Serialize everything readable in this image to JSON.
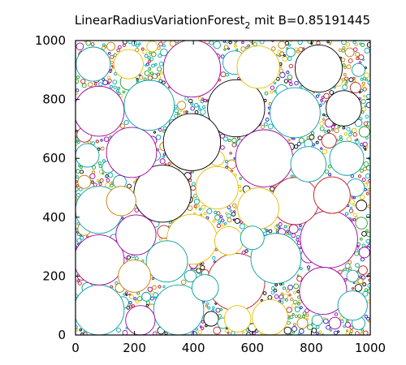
{
  "chart_data": {
    "type": "scatter",
    "title_main": "LinearRadiusVariationForest",
    "title_sub": "2",
    "title_rest": " mit B=0.85191445",
    "xlim": [
      0,
      1000
    ],
    "ylim": [
      0,
      1000
    ],
    "x_ticks": [
      0,
      200,
      400,
      600,
      800,
      1000
    ],
    "y_ticks": [
      0,
      200,
      400,
      600,
      800,
      1000
    ],
    "grid": false,
    "palette": [
      "#00a0a0",
      "#a000a0",
      "#e0c000",
      "#c02020",
      "#000000",
      "#c08000",
      "#00b0b0",
      "#20a020",
      "#2020c0"
    ],
    "large_circles": [
      {
        "x": 395,
        "y": 905,
        "r": 97,
        "color": "#a000a0"
      },
      {
        "x": 545,
        "y": 770,
        "r": 97,
        "color": "#000000"
      },
      {
        "x": 395,
        "y": 655,
        "r": 97,
        "color": "#000000"
      },
      {
        "x": 295,
        "y": 480,
        "r": 97,
        "color": "#000000"
      },
      {
        "x": 640,
        "y": 600,
        "r": 97,
        "color": "#a000a0"
      },
      {
        "x": 860,
        "y": 325,
        "r": 97,
        "color": "#a000a0"
      },
      {
        "x": 545,
        "y": 180,
        "r": 97,
        "color": "#c02020"
      },
      {
        "x": 350,
        "y": 85,
        "r": 85,
        "color": "#00a0a0"
      },
      {
        "x": 80,
        "y": 85,
        "r": 85,
        "color": "#00a0a0"
      },
      {
        "x": 80,
        "y": 255,
        "r": 85,
        "color": "#a000a0"
      },
      {
        "x": 80,
        "y": 425,
        "r": 80,
        "color": "#00a0a0"
      },
      {
        "x": 80,
        "y": 760,
        "r": 85,
        "color": "#a000a0"
      },
      {
        "x": 840,
        "y": 150,
        "r": 80,
        "color": "#a000a0"
      },
      {
        "x": 680,
        "y": 260,
        "r": 85,
        "color": "#00a0a0"
      },
      {
        "x": 190,
        "y": 620,
        "r": 85,
        "color": "#a000a0"
      },
      {
        "x": 250,
        "y": 780,
        "r": 85,
        "color": "#00a0a0"
      },
      {
        "x": 745,
        "y": 755,
        "r": 85,
        "color": "#00a0a0"
      },
      {
        "x": 825,
        "y": 905,
        "r": 80,
        "color": "#000000"
      },
      {
        "x": 395,
        "y": 325,
        "r": 85,
        "color": "#e0c000"
      },
      {
        "x": 620,
        "y": 910,
        "r": 72,
        "color": "#e0c000"
      },
      {
        "x": 480,
        "y": 500,
        "r": 72,
        "color": "#e0c000"
      },
      {
        "x": 745,
        "y": 455,
        "r": 80,
        "color": "#c02020"
      },
      {
        "x": 155,
        "y": 455,
        "r": 50,
        "color": "#c08000"
      },
      {
        "x": 620,
        "y": 430,
        "r": 70,
        "color": "#e0c000"
      },
      {
        "x": 205,
        "y": 340,
        "r": 68,
        "color": "#a000a0"
      },
      {
        "x": 310,
        "y": 250,
        "r": 70,
        "color": "#00a0a0"
      },
      {
        "x": 440,
        "y": 160,
        "r": 45,
        "color": "#00a0a0"
      },
      {
        "x": 200,
        "y": 200,
        "r": 55,
        "color": "#c08000"
      },
      {
        "x": 220,
        "y": 50,
        "r": 50,
        "color": "#a000a0"
      },
      {
        "x": 870,
        "y": 475,
        "r": 62,
        "color": "#c02020"
      },
      {
        "x": 790,
        "y": 580,
        "r": 60,
        "color": "#00a0a0"
      },
      {
        "x": 920,
        "y": 600,
        "r": 58,
        "color": "#00a0a0"
      },
      {
        "x": 910,
        "y": 770,
        "r": 60,
        "color": "#000000"
      },
      {
        "x": 60,
        "y": 920,
        "r": 58,
        "color": "#00a0a0"
      },
      {
        "x": 180,
        "y": 920,
        "r": 50,
        "color": "#e0c000"
      },
      {
        "x": 660,
        "y": 60,
        "r": 60,
        "color": "#e0c000"
      },
      {
        "x": 940,
        "y": 100,
        "r": 50,
        "color": "#00a0a0"
      },
      {
        "x": 550,
        "y": 55,
        "r": 45,
        "color": "#e0c000"
      },
      {
        "x": 520,
        "y": 320,
        "r": 48,
        "color": "#e0c000"
      },
      {
        "x": 600,
        "y": 330,
        "r": 40,
        "color": "#00a0a0"
      }
    ],
    "small_circles": [
      {
        "x": 540,
        "y": 925,
        "r": 40,
        "color": "#00a0a0"
      },
      {
        "x": 470,
        "y": 710,
        "r": 30,
        "color": "#00a0a0"
      },
      {
        "x": 180,
        "y": 860,
        "r": 28,
        "color": "#20a020"
      },
      {
        "x": 560,
        "y": 650,
        "r": 14,
        "color": "#00a0a0"
      },
      {
        "x": 620,
        "y": 720,
        "r": 10,
        "color": "#a000a0"
      },
      {
        "x": 960,
        "y": 900,
        "r": 22,
        "color": "#00a0a0"
      },
      {
        "x": 950,
        "y": 840,
        "r": 18,
        "color": "#c02020"
      },
      {
        "x": 890,
        "y": 860,
        "r": 15,
        "color": "#e0c000"
      },
      {
        "x": 930,
        "y": 960,
        "r": 15,
        "color": "#c08000"
      },
      {
        "x": 980,
        "y": 690,
        "r": 18,
        "color": "#20a020"
      },
      {
        "x": 40,
        "y": 610,
        "r": 40,
        "color": "#00a0a0"
      },
      {
        "x": 30,
        "y": 520,
        "r": 22,
        "color": "#c08000"
      },
      {
        "x": 30,
        "y": 680,
        "r": 25,
        "color": "#c02020"
      },
      {
        "x": 110,
        "y": 570,
        "r": 20,
        "color": "#00a0a0"
      },
      {
        "x": 150,
        "y": 520,
        "r": 22,
        "color": "#00a0a0"
      },
      {
        "x": 260,
        "y": 660,
        "r": 15,
        "color": "#a000a0"
      },
      {
        "x": 270,
        "y": 610,
        "r": 18,
        "color": "#00a0a0"
      },
      {
        "x": 345,
        "y": 580,
        "r": 18,
        "color": "#e0c000"
      },
      {
        "x": 480,
        "y": 600,
        "r": 25,
        "color": "#e0c000"
      },
      {
        "x": 530,
        "y": 580,
        "r": 15,
        "color": "#c08000"
      },
      {
        "x": 380,
        "y": 540,
        "r": 12,
        "color": "#000000"
      },
      {
        "x": 385,
        "y": 460,
        "r": 12,
        "color": "#000000"
      },
      {
        "x": 580,
        "y": 495,
        "r": 12,
        "color": "#000000"
      },
      {
        "x": 640,
        "y": 480,
        "r": 14,
        "color": "#000000"
      },
      {
        "x": 730,
        "y": 640,
        "r": 12,
        "color": "#000000"
      },
      {
        "x": 790,
        "y": 650,
        "r": 14,
        "color": "#00a0a0"
      },
      {
        "x": 860,
        "y": 660,
        "r": 25,
        "color": "#c02020"
      },
      {
        "x": 950,
        "y": 500,
        "r": 30,
        "color": "#00a0a0"
      },
      {
        "x": 970,
        "y": 440,
        "r": 18,
        "color": "#000000"
      },
      {
        "x": 970,
        "y": 380,
        "r": 20,
        "color": "#20a020"
      },
      {
        "x": 980,
        "y": 280,
        "r": 18,
        "color": "#a000a0"
      },
      {
        "x": 975,
        "y": 220,
        "r": 15,
        "color": "#c02020"
      },
      {
        "x": 960,
        "y": 160,
        "r": 12,
        "color": "#000000"
      },
      {
        "x": 940,
        "y": 200,
        "r": 20,
        "color": "#00a0a0"
      },
      {
        "x": 960,
        "y": 40,
        "r": 22,
        "color": "#00a0a0"
      },
      {
        "x": 880,
        "y": 40,
        "r": 20,
        "color": "#a000a0"
      },
      {
        "x": 820,
        "y": 50,
        "r": 18,
        "color": "#00a0a0"
      },
      {
        "x": 770,
        "y": 40,
        "r": 18,
        "color": "#c08000"
      },
      {
        "x": 720,
        "y": 15,
        "r": 12,
        "color": "#000000"
      },
      {
        "x": 790,
        "y": 270,
        "r": 25,
        "color": "#a000a0"
      },
      {
        "x": 740,
        "y": 360,
        "r": 15,
        "color": "#a000a0"
      },
      {
        "x": 700,
        "y": 350,
        "r": 12,
        "color": "#a000a0"
      },
      {
        "x": 460,
        "y": 55,
        "r": 25,
        "color": "#000000"
      },
      {
        "x": 500,
        "y": 40,
        "r": 18,
        "color": "#00a0a0"
      },
      {
        "x": 480,
        "y": 15,
        "r": 12,
        "color": "#c02020"
      },
      {
        "x": 600,
        "y": 25,
        "r": 14,
        "color": "#000000"
      },
      {
        "x": 570,
        "y": 80,
        "r": 12,
        "color": "#a000a0"
      },
      {
        "x": 290,
        "y": 15,
        "r": 12,
        "color": "#000000"
      },
      {
        "x": 260,
        "y": 90,
        "r": 15,
        "color": "#c08000"
      },
      {
        "x": 240,
        "y": 130,
        "r": 15,
        "color": "#00a0a0"
      },
      {
        "x": 160,
        "y": 110,
        "r": 20,
        "color": "#00a0a0"
      },
      {
        "x": 150,
        "y": 160,
        "r": 15,
        "color": "#c08000"
      },
      {
        "x": 160,
        "y": 250,
        "r": 15,
        "color": "#a000a0"
      },
      {
        "x": 130,
        "y": 230,
        "r": 12,
        "color": "#e0c000"
      },
      {
        "x": 300,
        "y": 350,
        "r": 22,
        "color": "#c02020"
      },
      {
        "x": 270,
        "y": 380,
        "r": 14,
        "color": "#00a0a0"
      },
      {
        "x": 400,
        "y": 240,
        "r": 14,
        "color": "#a000a0"
      },
      {
        "x": 390,
        "y": 200,
        "r": 20,
        "color": "#00a0a0"
      },
      {
        "x": 410,
        "y": 115,
        "r": 12,
        "color": "#00a0a0"
      },
      {
        "x": 440,
        "y": 210,
        "r": 12,
        "color": "#c02020"
      },
      {
        "x": 120,
        "y": 390,
        "r": 15,
        "color": "#00a0a0"
      },
      {
        "x": 130,
        "y": 330,
        "r": 12,
        "color": "#00a0a0"
      },
      {
        "x": 30,
        "y": 360,
        "r": 22,
        "color": "#c08000"
      },
      {
        "x": 40,
        "y": 160,
        "r": 18,
        "color": "#00a0a0"
      },
      {
        "x": 20,
        "y": 200,
        "r": 14,
        "color": "#c02020"
      },
      {
        "x": 100,
        "y": 150,
        "r": 12,
        "color": "#00a0a0"
      },
      {
        "x": 30,
        "y": 440,
        "r": 15,
        "color": "#00a0a0"
      },
      {
        "x": 25,
        "y": 950,
        "r": 15,
        "color": "#c02020"
      },
      {
        "x": 15,
        "y": 980,
        "r": 12,
        "color": "#a000a0"
      },
      {
        "x": 120,
        "y": 980,
        "r": 14,
        "color": "#c08000"
      },
      {
        "x": 260,
        "y": 980,
        "r": 18,
        "color": "#e0c000"
      },
      {
        "x": 300,
        "y": 960,
        "r": 12,
        "color": "#00a0a0"
      },
      {
        "x": 330,
        "y": 990,
        "r": 10,
        "color": "#c08000"
      },
      {
        "x": 480,
        "y": 985,
        "r": 12,
        "color": "#00a0a0"
      },
      {
        "x": 480,
        "y": 945,
        "r": 10,
        "color": "#a000a0"
      },
      {
        "x": 700,
        "y": 985,
        "r": 12,
        "color": "#c08000"
      },
      {
        "x": 730,
        "y": 960,
        "r": 15,
        "color": "#00a0a0"
      },
      {
        "x": 700,
        "y": 830,
        "r": 20,
        "color": "#00a0a0"
      },
      {
        "x": 860,
        "y": 720,
        "r": 14,
        "color": "#a000a0"
      },
      {
        "x": 960,
        "y": 720,
        "r": 12,
        "color": "#00a0a0"
      },
      {
        "x": 690,
        "y": 600,
        "r": 12,
        "color": "#a000a0"
      },
      {
        "x": 330,
        "y": 720,
        "r": 12,
        "color": "#00a0a0"
      },
      {
        "x": 360,
        "y": 780,
        "r": 14,
        "color": "#c08000"
      },
      {
        "x": 300,
        "y": 640,
        "r": 14,
        "color": "#c08000"
      },
      {
        "x": 70,
        "y": 870,
        "r": 12,
        "color": "#a000a0"
      }
    ]
  }
}
